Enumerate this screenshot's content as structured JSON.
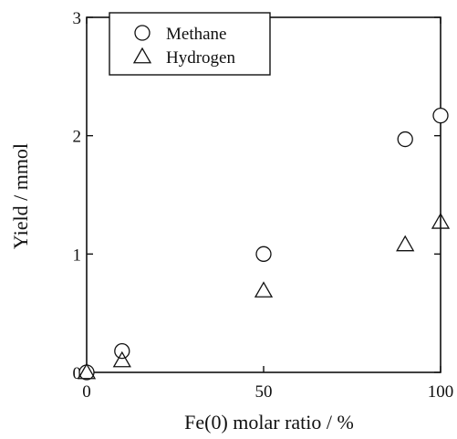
{
  "chart_data": {
    "type": "scatter",
    "title": "",
    "xlabel": "Fe(0) molar ratio / %",
    "ylabel": "Yield / mmol",
    "xlim": [
      0,
      100
    ],
    "ylim": [
      0,
      3
    ],
    "x_ticks": [
      {
        "value": 0,
        "label": "0"
      },
      {
        "value": 50,
        "label": "50"
      },
      {
        "value": 100,
        "label": "100"
      }
    ],
    "y_ticks": [
      {
        "value": 0,
        "label": "0"
      },
      {
        "value": 1,
        "label": "1"
      },
      {
        "value": 2,
        "label": "2"
      },
      {
        "value": 3,
        "label": "3"
      }
    ],
    "grid": false,
    "legend_position": "top-left",
    "series": [
      {
        "name": "Methane",
        "marker": "circle",
        "x": [
          0,
          10,
          50,
          90,
          100
        ],
        "y": [
          0.0,
          0.18,
          1.0,
          1.97,
          2.17
        ]
      },
      {
        "name": "Hydrogen",
        "marker": "triangle",
        "x": [
          0,
          10,
          50,
          90,
          100
        ],
        "y": [
          0.0,
          0.1,
          0.69,
          1.08,
          1.27
        ]
      }
    ]
  }
}
